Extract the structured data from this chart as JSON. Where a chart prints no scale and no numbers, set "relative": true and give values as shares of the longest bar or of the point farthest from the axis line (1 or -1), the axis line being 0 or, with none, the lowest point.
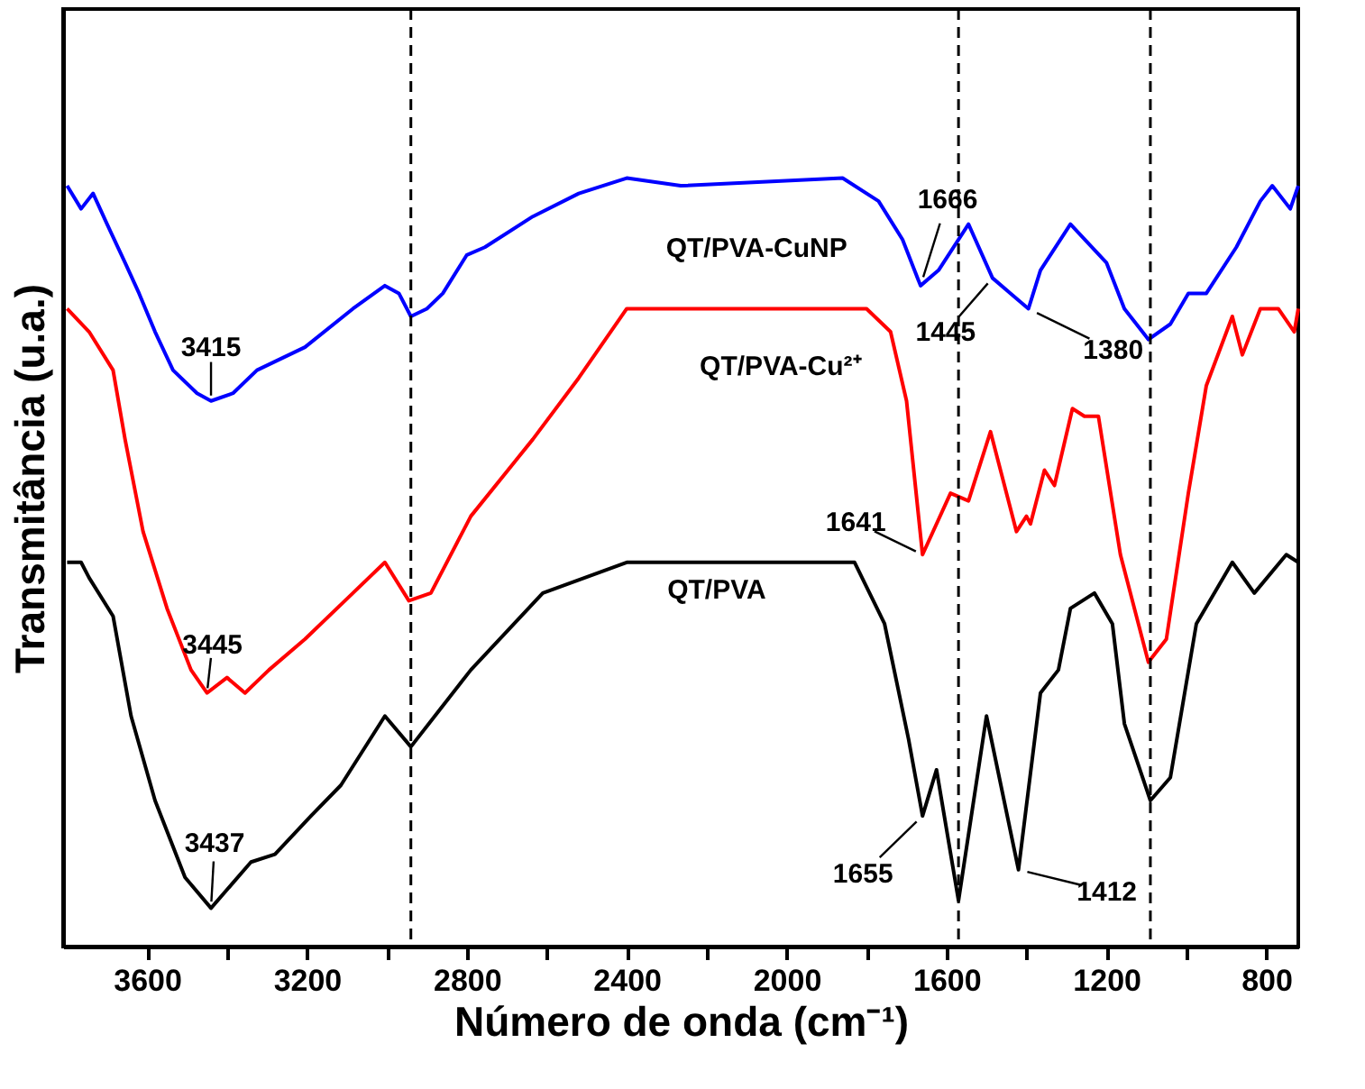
{
  "chart_data": {
    "type": "line",
    "xlabel": "Número de onda (cm⁻¹)",
    "ylabel": "Transmitância (u.a.)",
    "relative": true,
    "legend": false,
    "grid": false,
    "marker": "none",
    "line_style": "solid",
    "xlim": [
      3810,
      720
    ],
    "xticks": [
      3600,
      {
        "value": 3400,
        "label": null
      },
      3200,
      {
        "value": 3000,
        "label": null
      },
      2800,
      {
        "value": 2600,
        "label": null
      },
      2400,
      {
        "value": 2200,
        "label": null
      },
      2000,
      {
        "value": 1800,
        "label": null
      },
      1600,
      {
        "value": 1400,
        "label": null
      },
      1200,
      {
        "value": 1000,
        "label": null
      },
      800
    ],
    "series": [
      {
        "name": "QT/PVA-CuNP",
        "color": "#0000ff",
        "x": [
          3800,
          3765,
          3735,
          3700,
          3655,
          3620,
          3580,
          3535,
          3475,
          3440,
          3385,
          3325,
          3205,
          3085,
          3005,
          2970,
          2940,
          2900,
          2860,
          2800,
          2755,
          2635,
          2520,
          2400,
          2265,
          1860,
          1770,
          1710,
          1665,
          1620,
          1545,
          1485,
          1440,
          1395,
          1365,
          1290,
          1200,
          1155,
          1095,
          1040,
          995,
          950,
          875,
          815,
          785,
          740,
          720
        ],
        "values": [
          0.99,
          0.96,
          0.98,
          0.94,
          0.89,
          0.85,
          0.8,
          0.75,
          0.72,
          0.71,
          0.72,
          0.75,
          0.78,
          0.83,
          0.86,
          0.85,
          0.82,
          0.83,
          0.85,
          0.9,
          0.91,
          0.95,
          0.98,
          1.0,
          0.99,
          1.0,
          0.97,
          0.92,
          0.86,
          0.88,
          0.94,
          0.87,
          0.85,
          0.83,
          0.88,
          0.94,
          0.89,
          0.83,
          0.79,
          0.81,
          0.85,
          0.85,
          0.91,
          0.97,
          0.99,
          0.96,
          0.99
        ]
      },
      {
        "name": "QT/PVA-Cu²⁺",
        "color": "#ff0000",
        "x": [
          3800,
          3745,
          3685,
          3655,
          3610,
          3550,
          3490,
          3450,
          3400,
          3355,
          3295,
          3205,
          3085,
          3005,
          2945,
          2890,
          2790,
          2635,
          2520,
          2400,
          2265,
          1800,
          1740,
          1700,
          1660,
          1590,
          1545,
          1490,
          1425,
          1400,
          1390,
          1355,
          1330,
          1285,
          1255,
          1220,
          1165,
          1095,
          1050,
          995,
          950,
          885,
          860,
          815,
          770,
          730,
          720
        ],
        "values": [
          0.83,
          0.8,
          0.75,
          0.66,
          0.54,
          0.44,
          0.36,
          0.33,
          0.35,
          0.33,
          0.36,
          0.4,
          0.46,
          0.5,
          0.45,
          0.46,
          0.56,
          0.66,
          0.74,
          0.83,
          0.83,
          0.83,
          0.8,
          0.71,
          0.51,
          0.59,
          0.58,
          0.67,
          0.54,
          0.56,
          0.55,
          0.62,
          0.6,
          0.7,
          0.69,
          0.69,
          0.51,
          0.37,
          0.4,
          0.59,
          0.73,
          0.82,
          0.77,
          0.83,
          0.83,
          0.8,
          0.83
        ]
      },
      {
        "name": "QT/PVA",
        "color": "#000000",
        "x": [
          3800,
          3765,
          3745,
          3685,
          3640,
          3580,
          3505,
          3440,
          3340,
          3280,
          3190,
          3115,
          3005,
          2940,
          2880,
          2790,
          2610,
          2400,
          2265,
          1830,
          1755,
          1695,
          1660,
          1625,
          1570,
          1500,
          1420,
          1365,
          1320,
          1290,
          1230,
          1185,
          1155,
          1090,
          1040,
          975,
          885,
          830,
          750,
          720
        ],
        "values": [
          0.5,
          0.5,
          0.48,
          0.43,
          0.3,
          0.19,
          0.09,
          0.05,
          0.11,
          0.12,
          0.17,
          0.21,
          0.3,
          0.26,
          0.3,
          0.36,
          0.46,
          0.5,
          0.5,
          0.5,
          0.42,
          0.27,
          0.17,
          0.23,
          0.06,
          0.3,
          0.1,
          0.33,
          0.36,
          0.44,
          0.46,
          0.42,
          0.29,
          0.19,
          0.22,
          0.42,
          0.5,
          0.46,
          0.51,
          0.5
        ]
      }
    ],
    "ref_lines": [
      {
        "axis": "x",
        "value": 2940,
        "line_style": "dashed",
        "color": "#000000"
      },
      {
        "axis": "x",
        "value": 1570,
        "line_style": "dashed",
        "color": "#000000"
      },
      {
        "axis": "x",
        "value": 1090,
        "line_style": "dashed",
        "color": "#000000"
      }
    ],
    "annotations": [
      {
        "text": "3415",
        "x": 3440,
        "y": 0.71
      },
      {
        "text": "3445",
        "x": 3450,
        "y": 0.33
      },
      {
        "text": "3437",
        "x": 3440,
        "y": 0.05
      },
      {
        "text": "1666",
        "x": 1665,
        "y": 0.86
      },
      {
        "text": "1445",
        "x": 1485,
        "y": 0.87
      },
      {
        "text": "1380",
        "x": 1395,
        "y": 0.83
      },
      {
        "text": "1641",
        "x": 1660,
        "y": 0.51
      },
      {
        "text": "1655",
        "x": 1660,
        "y": 0.17
      },
      {
        "text": "1412",
        "x": 1420,
        "y": 0.1
      }
    ]
  }
}
